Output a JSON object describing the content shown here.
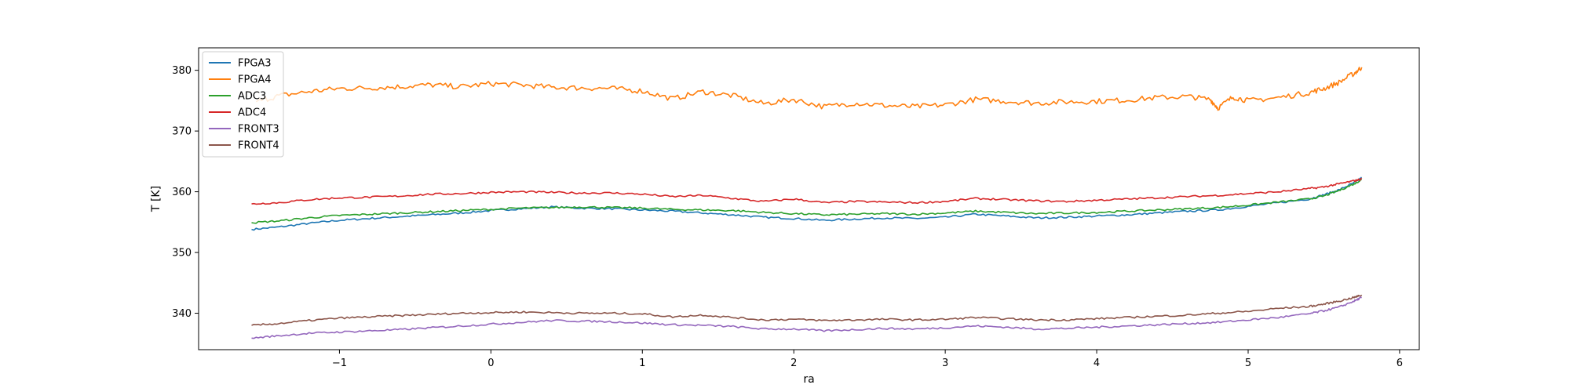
{
  "chart_data": {
    "type": "line",
    "title": "",
    "xlabel": "ra",
    "ylabel": "T [K]",
    "xlim": [
      -1.93,
      6.13
    ],
    "ylim": [
      334.0,
      383.7
    ],
    "xticks": [
      -1,
      0,
      1,
      2,
      3,
      4,
      5,
      6
    ],
    "xtick_labels": [
      "−1",
      "0",
      "1",
      "2",
      "3",
      "4",
      "5",
      "6"
    ],
    "yticks": [
      340,
      350,
      360,
      370,
      380
    ],
    "ytick_labels": [
      "340",
      "350",
      "360",
      "370",
      "380"
    ],
    "grid": false,
    "legend_position": "top-left",
    "series": [
      {
        "name": "FPGA3",
        "color": "#1f77b4",
        "x": [
          -1.58,
          -1.4,
          -1.2,
          -1.0,
          -0.8,
          -0.6,
          -0.4,
          -0.2,
          0.0,
          0.2,
          0.4,
          0.6,
          0.8,
          1.0,
          1.2,
          1.4,
          1.6,
          1.8,
          2.0,
          2.2,
          2.4,
          2.6,
          2.8,
          3.0,
          3.2,
          3.4,
          3.6,
          3.8,
          4.0,
          4.2,
          4.4,
          4.6,
          4.8,
          5.0,
          5.2,
          5.4,
          5.5,
          5.6,
          5.7,
          5.75
        ],
        "y": [
          353.8,
          354.2,
          354.8,
          355.3,
          355.6,
          355.9,
          356.2,
          356.5,
          356.9,
          357.2,
          357.5,
          357.3,
          357.2,
          357.0,
          356.8,
          356.5,
          356.2,
          355.8,
          355.6,
          355.3,
          355.5,
          355.7,
          355.6,
          355.8,
          356.3,
          356.0,
          355.7,
          355.8,
          356.0,
          356.2,
          356.5,
          356.8,
          357.0,
          357.6,
          358.2,
          358.8,
          359.5,
          360.3,
          361.5,
          362.3
        ]
      },
      {
        "name": "FPGA4",
        "color": "#ff7f0e",
        "x": [
          -1.55,
          -1.4,
          -1.2,
          -1.0,
          -0.8,
          -0.6,
          -0.4,
          -0.2,
          0.0,
          0.2,
          0.4,
          0.6,
          0.8,
          1.0,
          1.2,
          1.4,
          1.6,
          1.8,
          2.0,
          2.2,
          2.4,
          2.6,
          2.8,
          3.0,
          3.2,
          3.4,
          3.6,
          3.8,
          4.0,
          4.2,
          4.4,
          4.6,
          4.75,
          4.8,
          4.9,
          5.0,
          5.2,
          5.4,
          5.5,
          5.6,
          5.7,
          5.75
        ],
        "y": [
          374.8,
          375.8,
          376.5,
          377.0,
          377.1,
          377.3,
          377.6,
          377.3,
          377.8,
          377.6,
          377.2,
          377.1,
          377.0,
          376.6,
          375.3,
          376.5,
          375.8,
          374.5,
          375.2,
          374.0,
          374.6,
          374.2,
          374.0,
          374.3,
          375.2,
          374.9,
          374.6,
          374.8,
          374.9,
          375.1,
          375.5,
          375.7,
          375.2,
          373.8,
          375.6,
          375.0,
          375.5,
          376.3,
          377.0,
          378.0,
          379.5,
          380.5
        ]
      },
      {
        "name": "ADC3",
        "color": "#2ca02c",
        "x": [
          -1.58,
          -1.4,
          -1.2,
          -1.0,
          -0.8,
          -0.6,
          -0.4,
          -0.2,
          0.0,
          0.2,
          0.4,
          0.6,
          0.8,
          1.0,
          1.2,
          1.4,
          1.6,
          1.8,
          2.0,
          2.2,
          2.4,
          2.6,
          2.8,
          3.0,
          3.2,
          3.4,
          3.6,
          3.8,
          4.0,
          4.2,
          4.4,
          4.6,
          4.8,
          5.0,
          5.2,
          5.4,
          5.5,
          5.6,
          5.7,
          5.75
        ],
        "y": [
          354.9,
          355.2,
          355.7,
          356.1,
          356.3,
          356.5,
          356.7,
          356.9,
          357.1,
          357.3,
          357.4,
          357.5,
          357.4,
          357.3,
          357.1,
          357.0,
          356.9,
          356.6,
          356.4,
          356.2,
          356.3,
          356.4,
          356.3,
          356.5,
          356.8,
          356.6,
          356.4,
          356.5,
          356.6,
          356.8,
          357.0,
          357.2,
          357.4,
          357.8,
          358.3,
          358.8,
          359.3,
          360.2,
          361.3,
          362.0
        ]
      },
      {
        "name": "ADC4",
        "color": "#d62728",
        "x": [
          -1.58,
          -1.4,
          -1.2,
          -1.0,
          -0.8,
          -0.6,
          -0.4,
          -0.2,
          0.0,
          0.2,
          0.4,
          0.6,
          0.8,
          1.0,
          1.2,
          1.4,
          1.6,
          1.8,
          2.0,
          2.2,
          2.4,
          2.6,
          2.8,
          3.0,
          3.2,
          3.4,
          3.6,
          3.8,
          4.0,
          4.2,
          4.4,
          4.6,
          4.8,
          5.0,
          5.2,
          5.4,
          5.5,
          5.6,
          5.7,
          5.75
        ],
        "y": [
          358.0,
          358.2,
          358.7,
          359.0,
          359.1,
          359.3,
          359.6,
          359.7,
          359.9,
          360.0,
          359.9,
          359.8,
          359.8,
          359.6,
          359.2,
          359.4,
          358.9,
          358.4,
          358.8,
          358.2,
          358.4,
          358.3,
          358.2,
          358.4,
          358.9,
          358.7,
          358.5,
          358.4,
          358.6,
          358.8,
          359.0,
          359.2,
          359.4,
          359.7,
          360.0,
          360.5,
          360.8,
          361.3,
          361.8,
          362.1
        ]
      },
      {
        "name": "FRONT3",
        "color": "#9467bd",
        "x": [
          -1.58,
          -1.4,
          -1.2,
          -1.0,
          -0.8,
          -0.6,
          -0.4,
          -0.2,
          0.0,
          0.2,
          0.4,
          0.6,
          0.8,
          1.0,
          1.2,
          1.4,
          1.6,
          1.8,
          2.0,
          2.2,
          2.4,
          2.6,
          2.8,
          3.0,
          3.2,
          3.4,
          3.6,
          3.8,
          4.0,
          4.2,
          4.4,
          4.6,
          4.8,
          5.0,
          5.2,
          5.4,
          5.5,
          5.6,
          5.7,
          5.75
        ],
        "y": [
          335.9,
          336.3,
          336.7,
          336.9,
          337.1,
          337.3,
          337.6,
          337.9,
          338.2,
          338.5,
          338.8,
          338.7,
          338.6,
          338.4,
          338.1,
          338.0,
          337.8,
          337.4,
          337.4,
          337.1,
          337.3,
          337.5,
          337.4,
          337.6,
          337.9,
          337.7,
          337.4,
          337.5,
          337.7,
          337.9,
          338.1,
          338.3,
          338.5,
          338.9,
          339.3,
          339.9,
          340.4,
          341.0,
          342.0,
          342.6
        ]
      },
      {
        "name": "FRONT4",
        "color": "#8c564b",
        "x": [
          -1.58,
          -1.4,
          -1.2,
          -1.0,
          -0.8,
          -0.6,
          -0.4,
          -0.2,
          0.0,
          0.2,
          0.4,
          0.6,
          0.8,
          1.0,
          1.2,
          1.4,
          1.6,
          1.8,
          2.0,
          2.2,
          2.4,
          2.6,
          2.8,
          3.0,
          3.2,
          3.4,
          3.6,
          3.8,
          4.0,
          4.2,
          4.4,
          4.6,
          4.8,
          5.0,
          5.2,
          5.4,
          5.5,
          5.6,
          5.7,
          5.75
        ],
        "y": [
          338.0,
          338.3,
          338.8,
          339.2,
          339.4,
          339.6,
          339.8,
          340.0,
          340.1,
          340.2,
          340.1,
          340.0,
          340.0,
          339.9,
          339.4,
          339.7,
          339.3,
          338.9,
          339.0,
          338.8,
          338.9,
          339.0,
          338.9,
          339.0,
          339.3,
          339.1,
          338.9,
          338.9,
          339.1,
          339.3,
          339.5,
          339.7,
          340.0,
          340.3,
          340.8,
          341.1,
          341.5,
          342.0,
          342.6,
          343.0
        ]
      }
    ]
  }
}
